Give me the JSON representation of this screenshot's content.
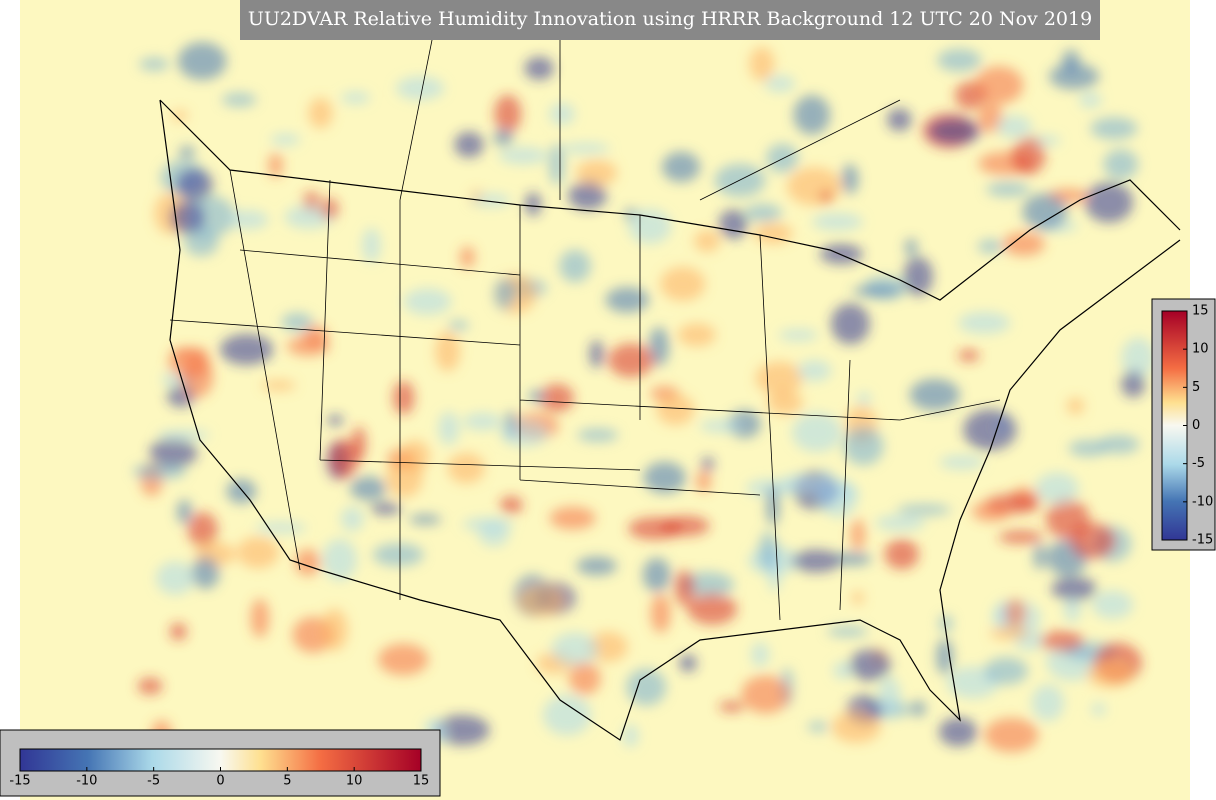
{
  "title": "UU2DVAR Relative Humidity Innovation using HRRR Background 12 UTC 20 Nov 2019",
  "colorbars": [
    {
      "orientation": "horizontal",
      "range": [
        -15,
        15
      ],
      "ticks": [
        -15,
        -10,
        -5,
        0,
        5,
        10,
        15
      ]
    },
    {
      "orientation": "vertical",
      "range": [
        -15,
        15
      ],
      "ticks": [
        -15,
        -10,
        -5,
        0,
        5,
        10,
        15
      ]
    }
  ]
}
